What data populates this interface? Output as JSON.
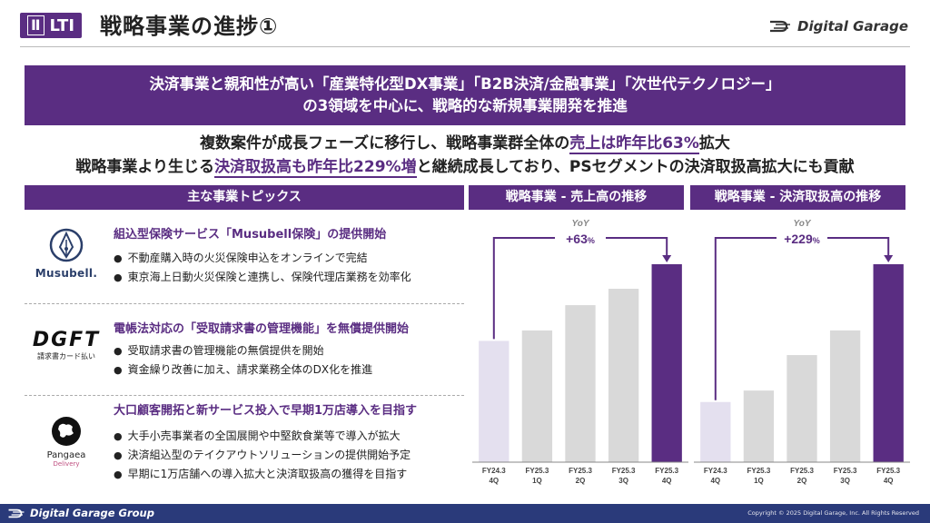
{
  "header": {
    "section_roman": "Ⅱ",
    "section_label": "LTI",
    "title": "戦略事業の進捗①",
    "brand": "Digital Garage"
  },
  "banner": {
    "line1": "決済事業と親和性が高い「産業特化型DX事業」「B2B決済/金融事業」「次世代テクノロジー」",
    "line2": "の3領域を中心に、戦略的な新規事業開発を推進"
  },
  "summary": {
    "line1_pre": "複数案件が成長フェーズに移行し、戦略事業群全体の",
    "line1_hl": "売上は昨年比63%",
    "line1_post": "拡大",
    "line2_pre": "戦略事業より生じる",
    "line2_hl": "決済取扱高も昨年比229%増",
    "line2_post": "と継続成長しており、PSセグメントの決済取扱高拡大にも貢献"
  },
  "topics_header": "主な事業トピックス",
  "topics": [
    {
      "logo_text": "Musubell.",
      "title": "組込型保険サービス「Musubell保険」の提供開始",
      "bullets": [
        "不動産購入時の火災保険申込をオンラインで完結",
        "東京海上日動火災保険と連携し、保険代理店業務を効率化"
      ]
    },
    {
      "logo_text": "DGFT",
      "logo_sub": "請求書カード払い",
      "title": "電帳法対応の「受取請求書の管理機能」を無償提供開始",
      "bullets": [
        "受取請求書の管理機能の無償提供を開始",
        "資金繰り改善に加え、請求業務全体のDX化を推進"
      ]
    },
    {
      "logo_text": "Pangaea",
      "logo_sub": "Delivery",
      "title": "大口顧客開拓と新サービス投入で早期1万店導入を目指す",
      "bullets": [
        "大手小売事業者の全国展開や中堅飲食業等で導入が拡大",
        "決済組込型のテイクアウトソリューションの提供開始予定",
        "早期に1万店舗への導入拡大と決済取扱高の獲得を目指す"
      ]
    }
  ],
  "chart_data": [
    {
      "type": "bar",
      "title": "戦略事業 - 売上高の推移",
      "categories": [
        "FY24.3 4Q",
        "FY25.3 1Q",
        "FY25.3 2Q",
        "FY25.3 3Q",
        "FY25.3 4Q"
      ],
      "values": [
        163,
        177,
        211,
        233,
        266
      ],
      "yoy_label": "YoY",
      "yoy_value": "+63",
      "yoy_unit": "%",
      "colors": [
        "#e4e0ef",
        "#d9d9d9",
        "#d9d9d9",
        "#d9d9d9",
        "#5a2d82"
      ]
    },
    {
      "type": "bar",
      "title": "戦略事業 - 決済取扱高の推移",
      "categories": [
        "FY24.3 4Q",
        "FY25.3 1Q",
        "FY25.3 2Q",
        "FY25.3 3Q",
        "FY25.3 4Q"
      ],
      "values": [
        100,
        119,
        178,
        219,
        329
      ],
      "yoy_label": "YoY",
      "yoy_value": "+229",
      "yoy_unit": "%",
      "colors": [
        "#e4e0ef",
        "#d9d9d9",
        "#d9d9d9",
        "#d9d9d9",
        "#5a2d82"
      ]
    }
  ],
  "footer": {
    "brand": "Digital Garage Group",
    "copyright": "Copyright © 2025 Digital Garage, Inc. All Rights Reserved"
  }
}
